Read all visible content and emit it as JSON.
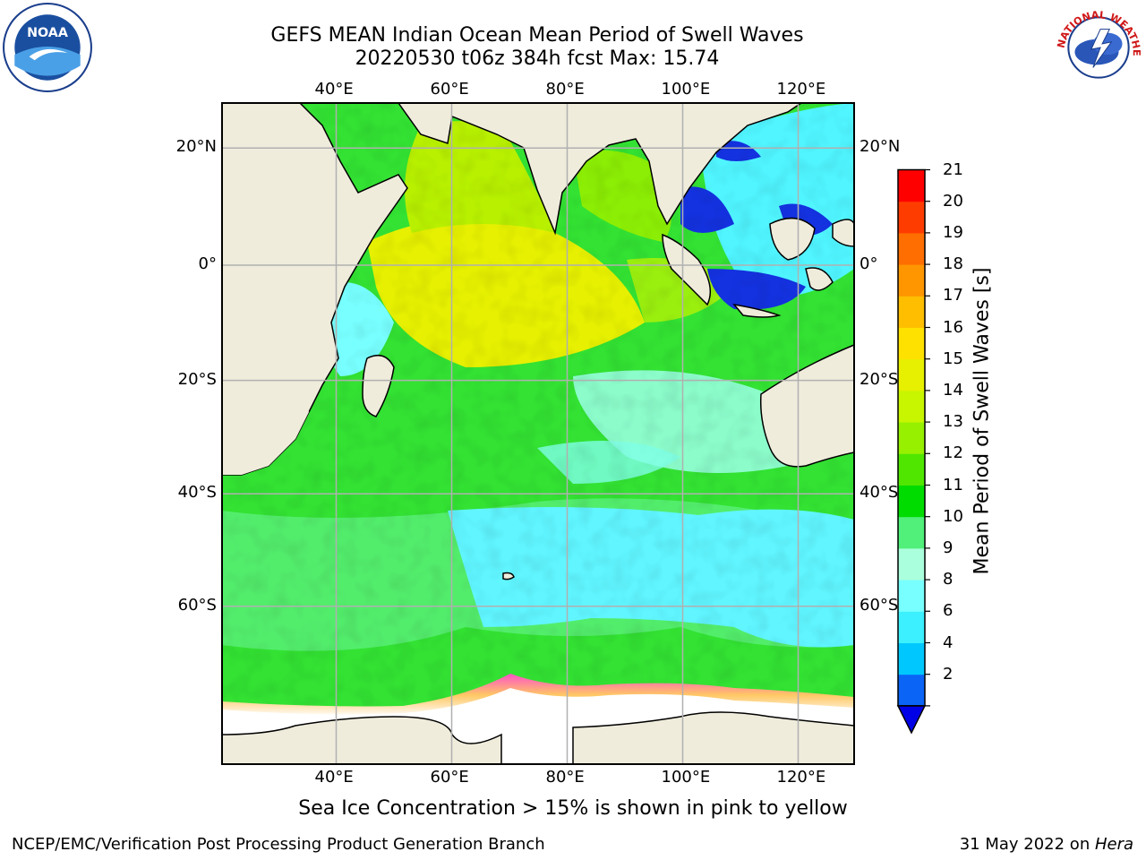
{
  "header": {
    "title_line1": "GEFS MEAN Indian Ocean Mean Period of Swell Waves",
    "title_line2": "20220530 t06z 384h fcst   Max: 15.74"
  },
  "logos": {
    "left": {
      "name": "noaa-logo",
      "text": "NOAA"
    },
    "right": {
      "name": "nws-logo",
      "text": "NATIONAL WEATHER SERVICE"
    }
  },
  "map": {
    "lon_ticks_top": [
      "40°E",
      "60°E",
      "80°E",
      "100°E",
      "120°E"
    ],
    "lon_ticks_bottom": [
      "40°E",
      "60°E",
      "80°E",
      "100°E",
      "120°E"
    ],
    "lat_ticks_left": [
      "20°N",
      "0°",
      "20°S",
      "40°S",
      "60°S"
    ],
    "lat_ticks_right": [
      "20°N",
      "0°",
      "20°S",
      "40°S",
      "60°S"
    ],
    "lon_values": [
      40,
      60,
      80,
      100,
      120
    ],
    "lat_values": [
      20,
      0,
      -20,
      -40,
      -60
    ],
    "land_color": "#efecdc",
    "grid_color": "#b0b0b0"
  },
  "colorbar": {
    "title": "Mean Period of Swell Waves [s]",
    "ticks": [
      "21",
      "20",
      "19",
      "18",
      "17",
      "16",
      "15",
      "14",
      "13",
      "12",
      "11",
      "10",
      "9",
      "8",
      "6",
      "4",
      "2"
    ],
    "levels": [
      2,
      4,
      6,
      8,
      9,
      10,
      11,
      12,
      13,
      14,
      15,
      16,
      17,
      18,
      19,
      20,
      21
    ],
    "colors": [
      "#0a64f5",
      "#00c8ff",
      "#3cf0ff",
      "#78ffff",
      "#aaffdc",
      "#50f07a",
      "#00dc00",
      "#50e600",
      "#96f000",
      "#c8f500",
      "#e6f000",
      "#ffe100",
      "#ffbe00",
      "#ff9600",
      "#ff6e00",
      "#ff3c00",
      "#ff0000"
    ],
    "underflow_color": "#0000e6"
  },
  "ice_note": "Sea Ice Concentration > 15% is shown in pink to yellow",
  "footer": {
    "left": "NCEP/EMC/Verification Post Processing Product Generation Branch",
    "right_prefix": "31 May 2022 on ",
    "right_machine": "Hera"
  }
}
